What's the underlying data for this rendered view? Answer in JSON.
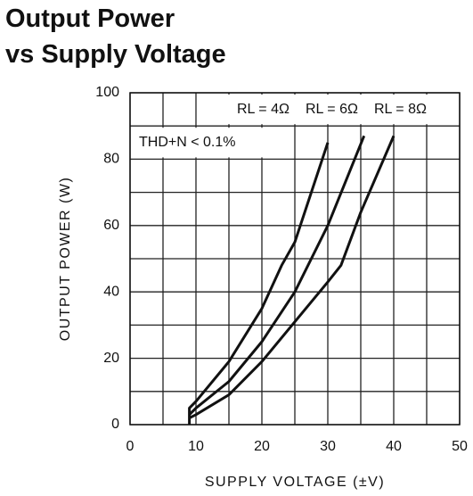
{
  "chart_data": {
    "type": "line",
    "title": [
      "Output Power",
      "vs Supply Voltage"
    ],
    "xlabel": "SUPPLY VOLTAGE (±V)",
    "ylabel": "OUTPUT POWER (W)",
    "annotation": "THD+N < 0.1%",
    "xlim": [
      0,
      50
    ],
    "ylim": [
      0,
      100
    ],
    "xticks": [
      0,
      10,
      20,
      30,
      40,
      50
    ],
    "yticks": [
      0,
      20,
      40,
      60,
      80,
      100
    ],
    "x_gridlines": [
      0,
      5,
      10,
      15,
      20,
      25,
      30,
      35,
      40,
      45,
      50
    ],
    "y_gridlines": [
      0,
      10,
      20,
      30,
      40,
      50,
      60,
      70,
      80,
      90,
      100
    ],
    "grid": true,
    "series": [
      {
        "name": "RL = 4Ω",
        "color": "#111111",
        "x": [
          9,
          9,
          10,
          15,
          20,
          23,
          25,
          27,
          30
        ],
        "values": [
          0,
          5,
          7,
          19,
          35,
          48,
          55,
          67,
          85
        ]
      },
      {
        "name": "RL = 6Ω",
        "color": "#111111",
        "x": [
          9,
          10,
          15,
          20,
          25,
          30,
          35.5
        ],
        "values": [
          3,
          5,
          13,
          25,
          40,
          60,
          87
        ]
      },
      {
        "name": "RL = 8Ω",
        "color": "#111111",
        "x": [
          9,
          10,
          15,
          20,
          25,
          30,
          32,
          35,
          40
        ],
        "values": [
          2,
          3,
          9,
          19,
          31,
          43,
          48,
          64,
          87
        ]
      }
    ]
  }
}
